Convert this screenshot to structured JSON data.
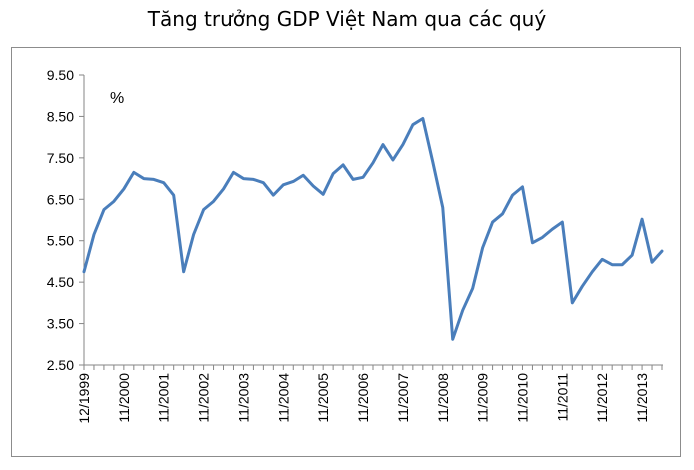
{
  "title": "Tăng trưởng GDP Việt Nam qua các quý",
  "chart_data": {
    "type": "line",
    "title": "Tăng trưởng GDP Việt Nam qua các quý",
    "ylabel": "%",
    "xlabel": "",
    "ylim": [
      2.5,
      9.5
    ],
    "yticks": [
      "9.50",
      "8.50",
      "7.50",
      "6.50",
      "5.50",
      "4.50",
      "3.50",
      "2.50"
    ],
    "xticklabels": [
      "12/1999",
      "11/2000",
      "11/2001",
      "11/2002",
      "11/2003",
      "11/2004",
      "11/2005",
      "11/2006",
      "11/2007",
      "11/2008",
      "11/2009",
      "11/2010",
      "11/2011",
      "11/2012",
      "11/2013"
    ],
    "grid": false,
    "legend": "none",
    "color": "#4a7ebb",
    "series": [
      {
        "name": "",
        "values": [
          4.75,
          5.65,
          6.25,
          6.45,
          6.75,
          7.15,
          7.0,
          6.98,
          6.9,
          6.6,
          4.75,
          5.65,
          6.25,
          6.45,
          6.75,
          7.15,
          7.0,
          6.98,
          6.9,
          6.6,
          6.85,
          6.93,
          7.08,
          6.82,
          6.62,
          7.12,
          7.33,
          6.98,
          7.03,
          7.38,
          7.82,
          7.45,
          7.82,
          8.3,
          8.45,
          7.4,
          6.3,
          3.12,
          3.82,
          4.35,
          5.33,
          5.95,
          6.15,
          6.6,
          6.8,
          5.45,
          5.58,
          5.78,
          5.95,
          4.0,
          4.4,
          4.75,
          5.05,
          4.92,
          4.92,
          5.15,
          6.02,
          4.98,
          5.25
        ]
      }
    ]
  }
}
